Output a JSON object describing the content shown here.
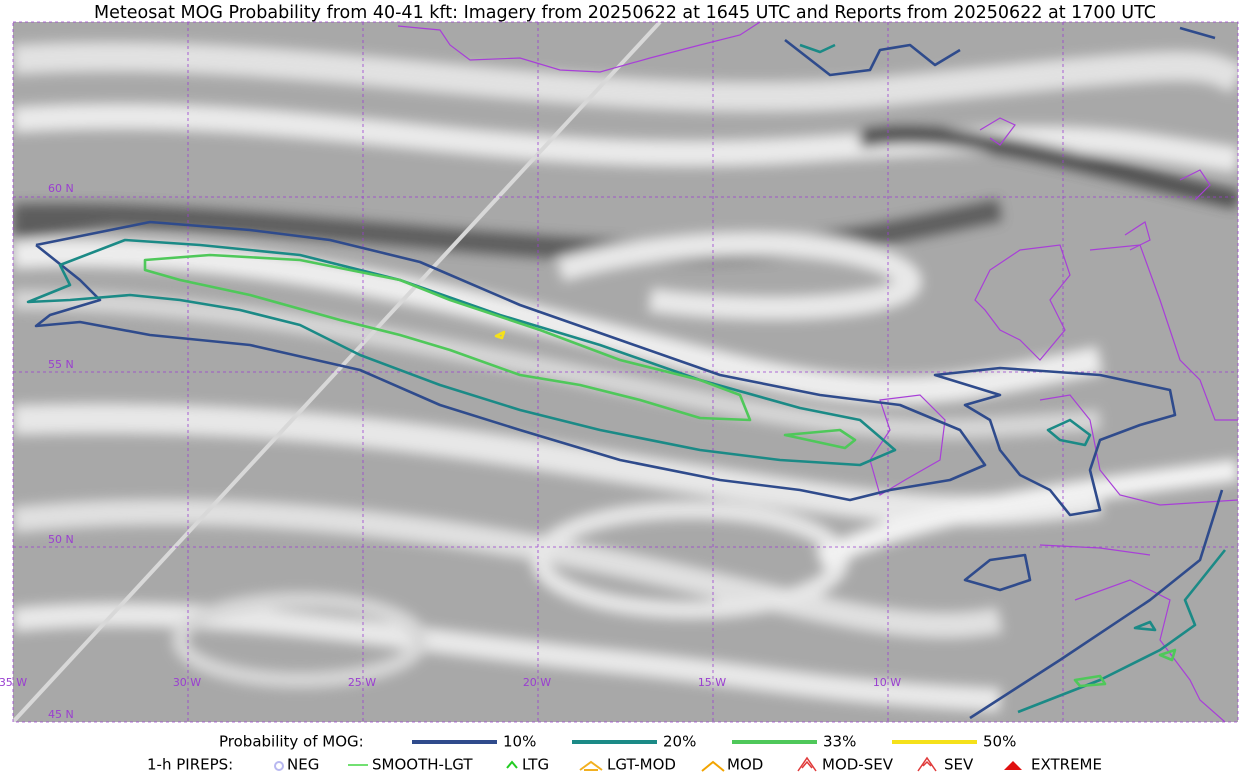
{
  "header": {
    "title": "Meteosat MOG Probability from 40-41 kft: Imagery from 20250622 at 1645 UTC and Reports from 20250622 at 1700 UTC"
  },
  "map": {
    "lat_labels": [
      "60 N",
      "55 N",
      "50 N",
      "45 N"
    ],
    "lon_labels": [
      "35 W",
      "30 W",
      "25 W",
      "20 W",
      "15 W",
      "10 W"
    ]
  },
  "legend": {
    "probability": {
      "title": "Probability of MOG:",
      "items": [
        {
          "label": "10%",
          "color": "#2f4b8c"
        },
        {
          "label": "20%",
          "color": "#1b8a86"
        },
        {
          "label": "33%",
          "color": "#4fc85a"
        },
        {
          "label": "50%",
          "color": "#f5e11a"
        }
      ]
    },
    "pireps": {
      "title": "1-h PIREPS:",
      "items": [
        {
          "label": "NEG",
          "color": "#b8b8f0"
        },
        {
          "label": "SMOOTH-LGT",
          "color": "#44d644"
        },
        {
          "label": "LTG",
          "color": "#22cc22"
        },
        {
          "label": "LGT-MOD",
          "color": "#f2b020"
        },
        {
          "label": "MOD",
          "color": "#f2a400"
        },
        {
          "label": "MOD-SEV",
          "color": "#e03a3a"
        },
        {
          "label": "SEV",
          "color": "#e03a3a"
        },
        {
          "label": "EXTREME",
          "color": "#e01010"
        }
      ]
    }
  }
}
